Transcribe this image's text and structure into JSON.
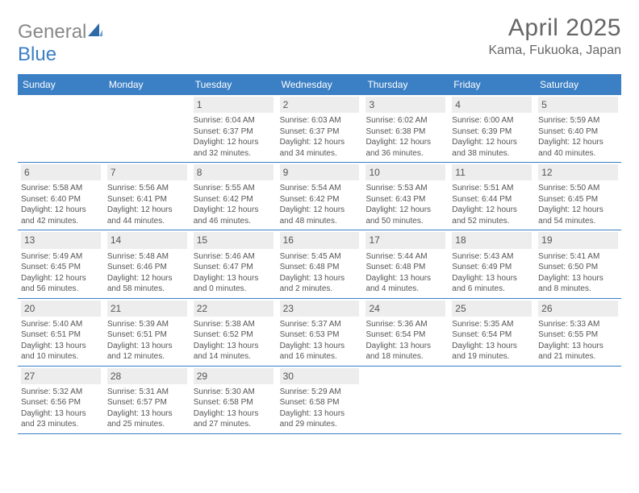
{
  "logo": {
    "part1": "General",
    "part2": "Blue"
  },
  "title": "April 2025",
  "location": "Kama, Fukuoka, Japan",
  "weekdays": [
    "Sunday",
    "Monday",
    "Tuesday",
    "Wednesday",
    "Thursday",
    "Friday",
    "Saturday"
  ],
  "header_bg": "#3b7fc4",
  "daynum_bg": "#ededed",
  "text_color": "#555",
  "grid": [
    [
      {
        "empty": true
      },
      {
        "empty": true
      },
      {
        "day": "1",
        "sunrise": "Sunrise: 6:04 AM",
        "sunset": "Sunset: 6:37 PM",
        "d1": "Daylight: 12 hours",
        "d2": "and 32 minutes."
      },
      {
        "day": "2",
        "sunrise": "Sunrise: 6:03 AM",
        "sunset": "Sunset: 6:37 PM",
        "d1": "Daylight: 12 hours",
        "d2": "and 34 minutes."
      },
      {
        "day": "3",
        "sunrise": "Sunrise: 6:02 AM",
        "sunset": "Sunset: 6:38 PM",
        "d1": "Daylight: 12 hours",
        "d2": "and 36 minutes."
      },
      {
        "day": "4",
        "sunrise": "Sunrise: 6:00 AM",
        "sunset": "Sunset: 6:39 PM",
        "d1": "Daylight: 12 hours",
        "d2": "and 38 minutes."
      },
      {
        "day": "5",
        "sunrise": "Sunrise: 5:59 AM",
        "sunset": "Sunset: 6:40 PM",
        "d1": "Daylight: 12 hours",
        "d2": "and 40 minutes."
      }
    ],
    [
      {
        "day": "6",
        "sunrise": "Sunrise: 5:58 AM",
        "sunset": "Sunset: 6:40 PM",
        "d1": "Daylight: 12 hours",
        "d2": "and 42 minutes."
      },
      {
        "day": "7",
        "sunrise": "Sunrise: 5:56 AM",
        "sunset": "Sunset: 6:41 PM",
        "d1": "Daylight: 12 hours",
        "d2": "and 44 minutes."
      },
      {
        "day": "8",
        "sunrise": "Sunrise: 5:55 AM",
        "sunset": "Sunset: 6:42 PM",
        "d1": "Daylight: 12 hours",
        "d2": "and 46 minutes."
      },
      {
        "day": "9",
        "sunrise": "Sunrise: 5:54 AM",
        "sunset": "Sunset: 6:42 PM",
        "d1": "Daylight: 12 hours",
        "d2": "and 48 minutes."
      },
      {
        "day": "10",
        "sunrise": "Sunrise: 5:53 AM",
        "sunset": "Sunset: 6:43 PM",
        "d1": "Daylight: 12 hours",
        "d2": "and 50 minutes."
      },
      {
        "day": "11",
        "sunrise": "Sunrise: 5:51 AM",
        "sunset": "Sunset: 6:44 PM",
        "d1": "Daylight: 12 hours",
        "d2": "and 52 minutes."
      },
      {
        "day": "12",
        "sunrise": "Sunrise: 5:50 AM",
        "sunset": "Sunset: 6:45 PM",
        "d1": "Daylight: 12 hours",
        "d2": "and 54 minutes."
      }
    ],
    [
      {
        "day": "13",
        "sunrise": "Sunrise: 5:49 AM",
        "sunset": "Sunset: 6:45 PM",
        "d1": "Daylight: 12 hours",
        "d2": "and 56 minutes."
      },
      {
        "day": "14",
        "sunrise": "Sunrise: 5:48 AM",
        "sunset": "Sunset: 6:46 PM",
        "d1": "Daylight: 12 hours",
        "d2": "and 58 minutes."
      },
      {
        "day": "15",
        "sunrise": "Sunrise: 5:46 AM",
        "sunset": "Sunset: 6:47 PM",
        "d1": "Daylight: 13 hours",
        "d2": "and 0 minutes."
      },
      {
        "day": "16",
        "sunrise": "Sunrise: 5:45 AM",
        "sunset": "Sunset: 6:48 PM",
        "d1": "Daylight: 13 hours",
        "d2": "and 2 minutes."
      },
      {
        "day": "17",
        "sunrise": "Sunrise: 5:44 AM",
        "sunset": "Sunset: 6:48 PM",
        "d1": "Daylight: 13 hours",
        "d2": "and 4 minutes."
      },
      {
        "day": "18",
        "sunrise": "Sunrise: 5:43 AM",
        "sunset": "Sunset: 6:49 PM",
        "d1": "Daylight: 13 hours",
        "d2": "and 6 minutes."
      },
      {
        "day": "19",
        "sunrise": "Sunrise: 5:41 AM",
        "sunset": "Sunset: 6:50 PM",
        "d1": "Daylight: 13 hours",
        "d2": "and 8 minutes."
      }
    ],
    [
      {
        "day": "20",
        "sunrise": "Sunrise: 5:40 AM",
        "sunset": "Sunset: 6:51 PM",
        "d1": "Daylight: 13 hours",
        "d2": "and 10 minutes."
      },
      {
        "day": "21",
        "sunrise": "Sunrise: 5:39 AM",
        "sunset": "Sunset: 6:51 PM",
        "d1": "Daylight: 13 hours",
        "d2": "and 12 minutes."
      },
      {
        "day": "22",
        "sunrise": "Sunrise: 5:38 AM",
        "sunset": "Sunset: 6:52 PM",
        "d1": "Daylight: 13 hours",
        "d2": "and 14 minutes."
      },
      {
        "day": "23",
        "sunrise": "Sunrise: 5:37 AM",
        "sunset": "Sunset: 6:53 PM",
        "d1": "Daylight: 13 hours",
        "d2": "and 16 minutes."
      },
      {
        "day": "24",
        "sunrise": "Sunrise: 5:36 AM",
        "sunset": "Sunset: 6:54 PM",
        "d1": "Daylight: 13 hours",
        "d2": "and 18 minutes."
      },
      {
        "day": "25",
        "sunrise": "Sunrise: 5:35 AM",
        "sunset": "Sunset: 6:54 PM",
        "d1": "Daylight: 13 hours",
        "d2": "and 19 minutes."
      },
      {
        "day": "26",
        "sunrise": "Sunrise: 5:33 AM",
        "sunset": "Sunset: 6:55 PM",
        "d1": "Daylight: 13 hours",
        "d2": "and 21 minutes."
      }
    ],
    [
      {
        "day": "27",
        "sunrise": "Sunrise: 5:32 AM",
        "sunset": "Sunset: 6:56 PM",
        "d1": "Daylight: 13 hours",
        "d2": "and 23 minutes."
      },
      {
        "day": "28",
        "sunrise": "Sunrise: 5:31 AM",
        "sunset": "Sunset: 6:57 PM",
        "d1": "Daylight: 13 hours",
        "d2": "and 25 minutes."
      },
      {
        "day": "29",
        "sunrise": "Sunrise: 5:30 AM",
        "sunset": "Sunset: 6:58 PM",
        "d1": "Daylight: 13 hours",
        "d2": "and 27 minutes."
      },
      {
        "day": "30",
        "sunrise": "Sunrise: 5:29 AM",
        "sunset": "Sunset: 6:58 PM",
        "d1": "Daylight: 13 hours",
        "d2": "and 29 minutes."
      },
      {
        "empty": true
      },
      {
        "empty": true
      },
      {
        "empty": true
      }
    ]
  ]
}
